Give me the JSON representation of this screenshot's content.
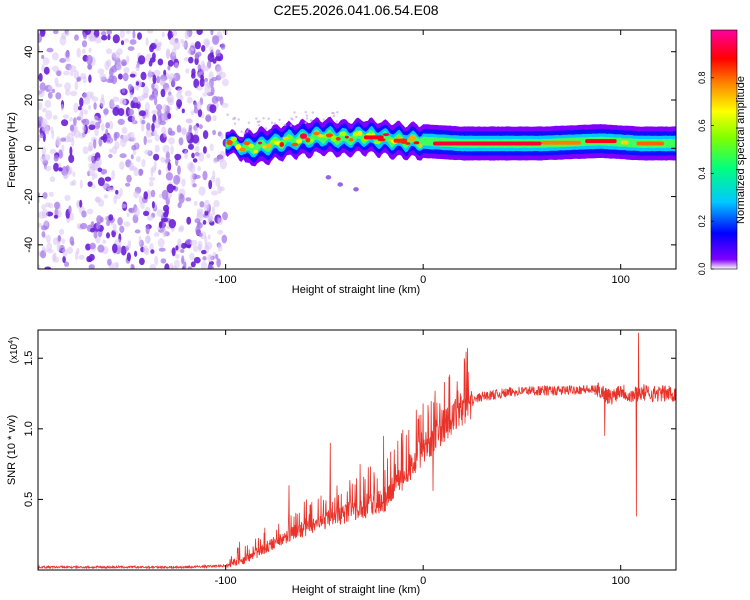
{
  "title": "C2E5.2026.041.06.54.E08",
  "chart_data": [
    {
      "type": "heatmap",
      "id": "spectrogram",
      "xlabel": "Height of straight line (km)",
      "ylabel": "Frequency (Hz)",
      "xlim": [
        -195,
        128
      ],
      "ylim": [
        -50,
        49
      ],
      "xticks": [
        -100,
        0,
        100
      ],
      "xtick_labels": [
        "-100",
        "0",
        "100"
      ],
      "yticks": [
        -40,
        -20,
        0,
        20,
        40
      ],
      "ytick_labels": [
        "-40",
        "-20",
        "0",
        "20",
        "40"
      ],
      "colorbar": {
        "label": "Normalized spectral amplitude",
        "range": [
          0,
          1
        ],
        "ticks": [
          0.0,
          0.2,
          0.4,
          0.6,
          0.8
        ],
        "tick_labels": [
          "0.0",
          "0.2",
          "0.4",
          "0.6",
          "0.8"
        ],
        "colors": [
          "#ffffff",
          "#7f00ff",
          "#0000ff",
          "#00c8ff",
          "#00ff80",
          "#80ff00",
          "#ffff00",
          "#ff8000",
          "#ff0000",
          "#ff00a0"
        ]
      },
      "noise_region": {
        "x": [
          -195,
          -100
        ],
        "frequency": [
          -50,
          49
        ],
        "amplitude": [
          0.0,
          0.2
        ]
      },
      "ridge": [
        {
          "x": -100,
          "frequency": 3
        },
        {
          "x": -90,
          "frequency": 0
        },
        {
          "x": -80,
          "frequency": 1
        },
        {
          "x": -70,
          "frequency": 3
        },
        {
          "x": -60,
          "frequency": 4
        },
        {
          "x": -50,
          "frequency": 5
        },
        {
          "x": -40,
          "frequency": 4
        },
        {
          "x": -30,
          "frequency": 5
        },
        {
          "x": -20,
          "frequency": 4
        },
        {
          "x": -10,
          "frequency": 3
        },
        {
          "x": 0,
          "frequency": 3
        },
        {
          "x": 20,
          "frequency": 2
        },
        {
          "x": 60,
          "frequency": 2
        },
        {
          "x": 90,
          "frequency": 3
        },
        {
          "x": 110,
          "frequency": 2
        },
        {
          "x": 128,
          "frequency": 2
        }
      ],
      "secondary_trace": [
        {
          "x": -48,
          "frequency": -12
        },
        {
          "x": -42,
          "frequency": -15
        },
        {
          "x": -34,
          "frequency": -17
        }
      ]
    },
    {
      "type": "line",
      "id": "snr",
      "xlabel": "Height of straight line (km)",
      "ylabel": "SNR (10 * v/v)",
      "y_multiplier": "(x10",
      "y_exponent": "4",
      "xlim": [
        -195,
        128
      ],
      "ylim": [
        0,
        1.7
      ],
      "xticks": [
        -100,
        0,
        100
      ],
      "xtick_labels": [
        "-100",
        "0",
        "100"
      ],
      "yticks": [
        0.5,
        1.0,
        1.5
      ],
      "ytick_labels": [
        "0.5",
        "1.0",
        "1.5"
      ],
      "color": "#e8322a",
      "series": [
        {
          "name": "SNR",
          "x": [
            -195,
            -120,
            -100,
            -90,
            -80,
            -70,
            -60,
            -50,
            -40,
            -30,
            -20,
            -10,
            0,
            10,
            20,
            30,
            40,
            50,
            60,
            70,
            80,
            90,
            95,
            100,
            105,
            108,
            110,
            115,
            120,
            128
          ],
          "y": [
            0.02,
            0.02,
            0.03,
            0.08,
            0.16,
            0.24,
            0.3,
            0.36,
            0.4,
            0.46,
            0.5,
            0.68,
            0.86,
            1.02,
            1.16,
            1.23,
            1.25,
            1.27,
            1.27,
            1.27,
            1.28,
            1.27,
            1.22,
            1.28,
            1.23,
            1.25,
            1.26,
            1.25,
            1.25,
            1.25
          ]
        }
      ],
      "spikes": [
        {
          "x": -93,
          "y": 0.2
        },
        {
          "x": -68,
          "y": 0.6
        },
        {
          "x": -47,
          "y": 0.9
        },
        {
          "x": -32,
          "y": 0.75
        },
        {
          "x": -20,
          "y": 0.95
        },
        {
          "x": 5,
          "y": 0.56
        },
        {
          "x": 6,
          "y": 1.27
        },
        {
          "x": 92,
          "y": 0.95
        },
        {
          "x": 108,
          "y": 0.38
        },
        {
          "x": 109,
          "y": 1.68
        }
      ]
    }
  ]
}
